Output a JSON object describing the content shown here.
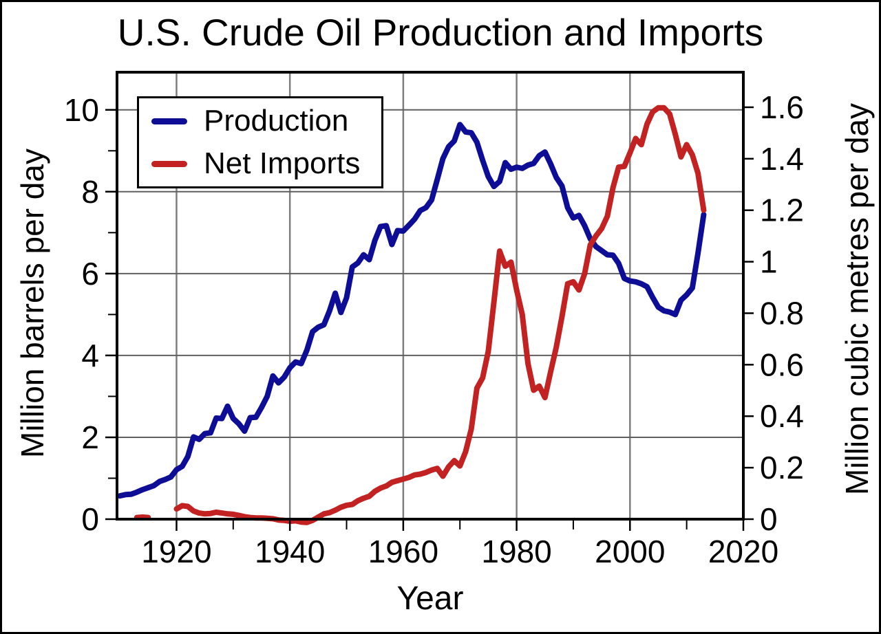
{
  "chart_data": {
    "type": "line",
    "title": "U.S. Crude Oil Production and Imports",
    "xlabel": "Year",
    "ylabel_left": "Million barrels per day",
    "ylabel_right": "Million cubic metres per day",
    "xlim": [
      1909.5,
      2020
    ],
    "ylim_left": [
      0,
      10.92
    ],
    "grid": {
      "vertical_at": [
        1920,
        1940,
        1960,
        1980,
        2000
      ],
      "horizontal_at": [
        2,
        4,
        6,
        8,
        10
      ],
      "vertical_color": "#7e7e7e",
      "horizontal_color": "#5f5f5f"
    },
    "x_axis": {
      "major_ticks": [
        1920,
        1940,
        1960,
        1980,
        2000,
        2020
      ],
      "tick_labels": [
        "1920",
        "1940",
        "1960",
        "1980",
        "2000",
        "2020"
      ],
      "minor_ticks": [
        1930,
        1950,
        1970,
        1990,
        2010
      ]
    },
    "y_left_axis": {
      "major_ticks": [
        0,
        2,
        4,
        6,
        8,
        10
      ],
      "tick_labels": [
        "0",
        "2",
        "4",
        "6",
        "8",
        "10"
      ],
      "minor_ticks": [
        1,
        3,
        5,
        7,
        9
      ]
    },
    "y_right_axis": {
      "major_ticks": [
        0,
        0.2,
        0.4,
        0.6,
        0.8,
        1,
        1.2,
        1.4,
        1.6
      ],
      "tick_labels": [
        "0",
        "0.2",
        "0.4",
        "0.6",
        "0.8",
        "1",
        "1.2",
        "1.4",
        "1.6"
      ],
      "left_axis_barrels_per_cubic_metre": 6.2898
    },
    "legend": {
      "position": "top-left",
      "entries": [
        {
          "label": "Production",
          "color": "#0d0d96"
        },
        {
          "label": "Net Imports",
          "color": "#c22222"
        }
      ]
    },
    "series": [
      {
        "name": "Production",
        "color": "#0d0d96",
        "units": "million barrels per day",
        "segments": [
          [
            [
              1910,
              0.57
            ],
            [
              1911,
              0.6
            ],
            [
              1912,
              0.61
            ],
            [
              1913,
              0.66
            ],
            [
              1914,
              0.72
            ],
            [
              1915,
              0.77
            ],
            [
              1916,
              0.82
            ],
            [
              1917,
              0.92
            ],
            [
              1918,
              0.97
            ],
            [
              1919,
              1.03
            ],
            [
              1920,
              1.21
            ],
            [
              1921,
              1.29
            ],
            [
              1922,
              1.53
            ],
            [
              1923,
              2.01
            ],
            [
              1924,
              1.95
            ],
            [
              1925,
              2.09
            ],
            [
              1926,
              2.11
            ],
            [
              1927,
              2.47
            ],
            [
              1928,
              2.46
            ],
            [
              1929,
              2.76
            ],
            [
              1930,
              2.46
            ],
            [
              1931,
              2.33
            ],
            [
              1932,
              2.15
            ],
            [
              1933,
              2.48
            ],
            [
              1934,
              2.49
            ],
            [
              1935,
              2.73
            ],
            [
              1936,
              3.0
            ],
            [
              1937,
              3.5
            ],
            [
              1938,
              3.33
            ],
            [
              1939,
              3.47
            ],
            [
              1940,
              3.7
            ],
            [
              1941,
              3.84
            ],
            [
              1942,
              3.8
            ],
            [
              1943,
              4.13
            ],
            [
              1944,
              4.58
            ],
            [
              1945,
              4.69
            ],
            [
              1946,
              4.75
            ],
            [
              1947,
              5.09
            ],
            [
              1948,
              5.52
            ],
            [
              1949,
              5.05
            ],
            [
              1950,
              5.41
            ],
            [
              1951,
              6.16
            ],
            [
              1952,
              6.26
            ],
            [
              1953,
              6.46
            ],
            [
              1954,
              6.34
            ],
            [
              1955,
              6.81
            ],
            [
              1956,
              7.15
            ],
            [
              1957,
              7.17
            ],
            [
              1958,
              6.71
            ],
            [
              1959,
              7.05
            ],
            [
              1960,
              7.04
            ],
            [
              1961,
              7.18
            ],
            [
              1962,
              7.33
            ],
            [
              1963,
              7.54
            ],
            [
              1964,
              7.61
            ],
            [
              1965,
              7.8
            ],
            [
              1966,
              8.3
            ],
            [
              1967,
              8.81
            ],
            [
              1968,
              9.1
            ],
            [
              1969,
              9.24
            ],
            [
              1970,
              9.64
            ],
            [
              1971,
              9.46
            ],
            [
              1972,
              9.44
            ],
            [
              1973,
              9.21
            ],
            [
              1974,
              8.77
            ],
            [
              1975,
              8.37
            ],
            [
              1976,
              8.13
            ],
            [
              1977,
              8.25
            ],
            [
              1978,
              8.71
            ],
            [
              1979,
              8.55
            ],
            [
              1980,
              8.6
            ],
            [
              1981,
              8.57
            ],
            [
              1982,
              8.65
            ],
            [
              1983,
              8.69
            ],
            [
              1984,
              8.88
            ],
            [
              1985,
              8.97
            ],
            [
              1986,
              8.68
            ],
            [
              1987,
              8.35
            ],
            [
              1988,
              8.14
            ],
            [
              1989,
              7.61
            ],
            [
              1990,
              7.36
            ],
            [
              1991,
              7.42
            ],
            [
              1992,
              7.17
            ],
            [
              1993,
              6.85
            ],
            [
              1994,
              6.66
            ],
            [
              1995,
              6.56
            ],
            [
              1996,
              6.46
            ],
            [
              1997,
              6.45
            ],
            [
              1998,
              6.25
            ],
            [
              1999,
              5.88
            ],
            [
              2000,
              5.82
            ],
            [
              2001,
              5.8
            ],
            [
              2002,
              5.75
            ],
            [
              2003,
              5.68
            ],
            [
              2004,
              5.42
            ],
            [
              2005,
              5.18
            ],
            [
              2006,
              5.09
            ],
            [
              2007,
              5.06
            ],
            [
              2008,
              5.0
            ],
            [
              2009,
              5.35
            ],
            [
              2010,
              5.48
            ],
            [
              2011,
              5.65
            ],
            [
              2012,
              6.5
            ],
            [
              2013,
              7.44
            ]
          ]
        ]
      },
      {
        "name": "Net Imports",
        "color": "#c22222",
        "units": "million barrels per day",
        "segments": [
          [
            [
              1913,
              0.04
            ],
            [
              1914,
              0.05
            ],
            [
              1915,
              0.04
            ]
          ],
          [
            [
              1920,
              0.25
            ],
            [
              1921,
              0.33
            ],
            [
              1922,
              0.31
            ],
            [
              1923,
              0.2
            ],
            [
              1924,
              0.15
            ],
            [
              1925,
              0.13
            ],
            [
              1926,
              0.14
            ],
            [
              1927,
              0.17
            ],
            [
              1928,
              0.15
            ],
            [
              1929,
              0.13
            ],
            [
              1930,
              0.12
            ],
            [
              1931,
              0.09
            ],
            [
              1932,
              0.06
            ],
            [
              1933,
              0.04
            ],
            [
              1934,
              0.03
            ],
            [
              1935,
              0.03
            ],
            [
              1936,
              0.02
            ],
            [
              1937,
              0.01
            ],
            [
              1938,
              -0.02
            ],
            [
              1939,
              -0.03
            ],
            [
              1940,
              -0.05
            ],
            [
              1941,
              -0.04
            ],
            [
              1942,
              -0.07
            ],
            [
              1943,
              -0.08
            ],
            [
              1944,
              -0.03
            ],
            [
              1945,
              0.05
            ],
            [
              1946,
              0.13
            ],
            [
              1947,
              0.16
            ],
            [
              1948,
              0.22
            ],
            [
              1949,
              0.29
            ],
            [
              1950,
              0.34
            ],
            [
              1951,
              0.36
            ],
            [
              1952,
              0.45
            ],
            [
              1953,
              0.51
            ],
            [
              1954,
              0.56
            ],
            [
              1955,
              0.68
            ],
            [
              1956,
              0.76
            ],
            [
              1957,
              0.81
            ],
            [
              1958,
              0.9
            ],
            [
              1959,
              0.94
            ],
            [
              1960,
              0.98
            ],
            [
              1961,
              1.02
            ],
            [
              1962,
              1.08
            ],
            [
              1963,
              1.1
            ],
            [
              1964,
              1.14
            ],
            [
              1965,
              1.2
            ],
            [
              1966,
              1.24
            ],
            [
              1967,
              1.05
            ],
            [
              1968,
              1.28
            ],
            [
              1969,
              1.43
            ],
            [
              1970,
              1.3
            ],
            [
              1971,
              1.65
            ],
            [
              1972,
              2.2
            ],
            [
              1973,
              3.2
            ],
            [
              1974,
              3.45
            ],
            [
              1975,
              4.1
            ],
            [
              1976,
              5.3
            ],
            [
              1977,
              6.55
            ],
            [
              1978,
              6.18
            ],
            [
              1979,
              6.28
            ],
            [
              1980,
              5.6
            ],
            [
              1981,
              5.0
            ],
            [
              1982,
              3.8
            ],
            [
              1983,
              3.15
            ],
            [
              1984,
              3.25
            ],
            [
              1985,
              2.97
            ],
            [
              1986,
              3.6
            ],
            [
              1987,
              4.2
            ],
            [
              1988,
              4.95
            ],
            [
              1989,
              5.75
            ],
            [
              1990,
              5.8
            ],
            [
              1991,
              5.6
            ],
            [
              1992,
              6.0
            ],
            [
              1993,
              6.7
            ],
            [
              1994,
              6.92
            ],
            [
              1995,
              7.1
            ],
            [
              1996,
              7.4
            ],
            [
              1997,
              8.1
            ],
            [
              1998,
              8.6
            ],
            [
              1999,
              8.62
            ],
            [
              2000,
              8.95
            ],
            [
              2001,
              9.3
            ],
            [
              2002,
              9.15
            ],
            [
              2003,
              9.65
            ],
            [
              2004,
              9.95
            ],
            [
              2005,
              10.05
            ],
            [
              2006,
              10.05
            ],
            [
              2007,
              9.9
            ],
            [
              2008,
              9.4
            ],
            [
              2009,
              8.85
            ],
            [
              2010,
              9.15
            ],
            [
              2011,
              8.9
            ],
            [
              2012,
              8.45
            ],
            [
              2013,
              7.55
            ]
          ]
        ]
      }
    ]
  }
}
